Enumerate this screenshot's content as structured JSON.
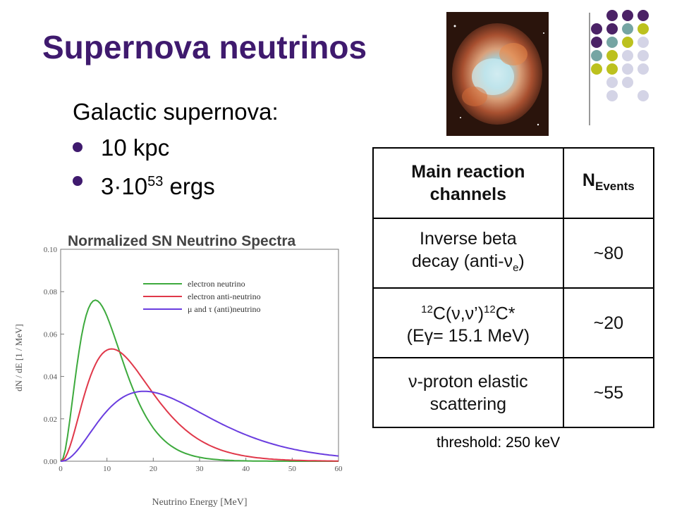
{
  "slide": {
    "title": "Supernova neutrinos",
    "subtitle": "Galactic supernova:",
    "bullets": [
      {
        "text": "10 kpc"
      },
      {
        "pre": "3",
        "mid": "·",
        "base": "10",
        "sup": "53",
        "post": " ergs"
      }
    ],
    "threshold": "threshold: 250 keV"
  },
  "table": {
    "headers": {
      "channel": "Main reaction channels",
      "events_base": "N",
      "events_sub": "Events"
    },
    "rows": [
      {
        "line1": "Inverse beta",
        "line2_pre": "decay (anti-",
        "line2_nu": "ν",
        "line2_sub": "e",
        "line2_post": ")",
        "events": "~80"
      },
      {
        "sup1": "12",
        "mid": "C(ν,ν’)",
        "sup2": "12",
        "tail": "C*",
        "line2": "(Eγ= 15.1 MeV)",
        "events": "~20"
      },
      {
        "line1": "ν-proton elastic",
        "line2": "scattering",
        "events": "~55"
      }
    ]
  },
  "chart_data": {
    "type": "line",
    "title": "Normalized SN Neutrino Spectra",
    "xlabel": "Neutrino Energy [MeV]",
    "ylabel": "dN / dE [1 / MeV]",
    "xlim": [
      0,
      60
    ],
    "ylim": [
      0,
      0.1
    ],
    "x_ticks": [
      0,
      10,
      20,
      30,
      40,
      50,
      60
    ],
    "y_ticks": [
      "0.00",
      "0.02",
      "0.04",
      "0.06",
      "0.08",
      "0.10"
    ],
    "legend_position": "top-right",
    "series": [
      {
        "name": "electron neutrino",
        "color": "#3daa3d",
        "peak_x": 7.5,
        "peak_y": 0.076
      },
      {
        "name": "electron anti-neutrino",
        "color": "#e0384a",
        "peak_x": 11,
        "peak_y": 0.053
      },
      {
        "name": "μ and τ (anti)neutrino",
        "color": "#6a3ddf",
        "peak_x": 18,
        "peak_y": 0.033
      }
    ]
  },
  "colors": {
    "title": "#3f1a6e",
    "bullet": "#3f1a6e",
    "dot_purple": "#4b2266",
    "dot_teal": "#75a5a3",
    "dot_yellow": "#bcc11e",
    "dot_light": "#d4d4e6"
  }
}
